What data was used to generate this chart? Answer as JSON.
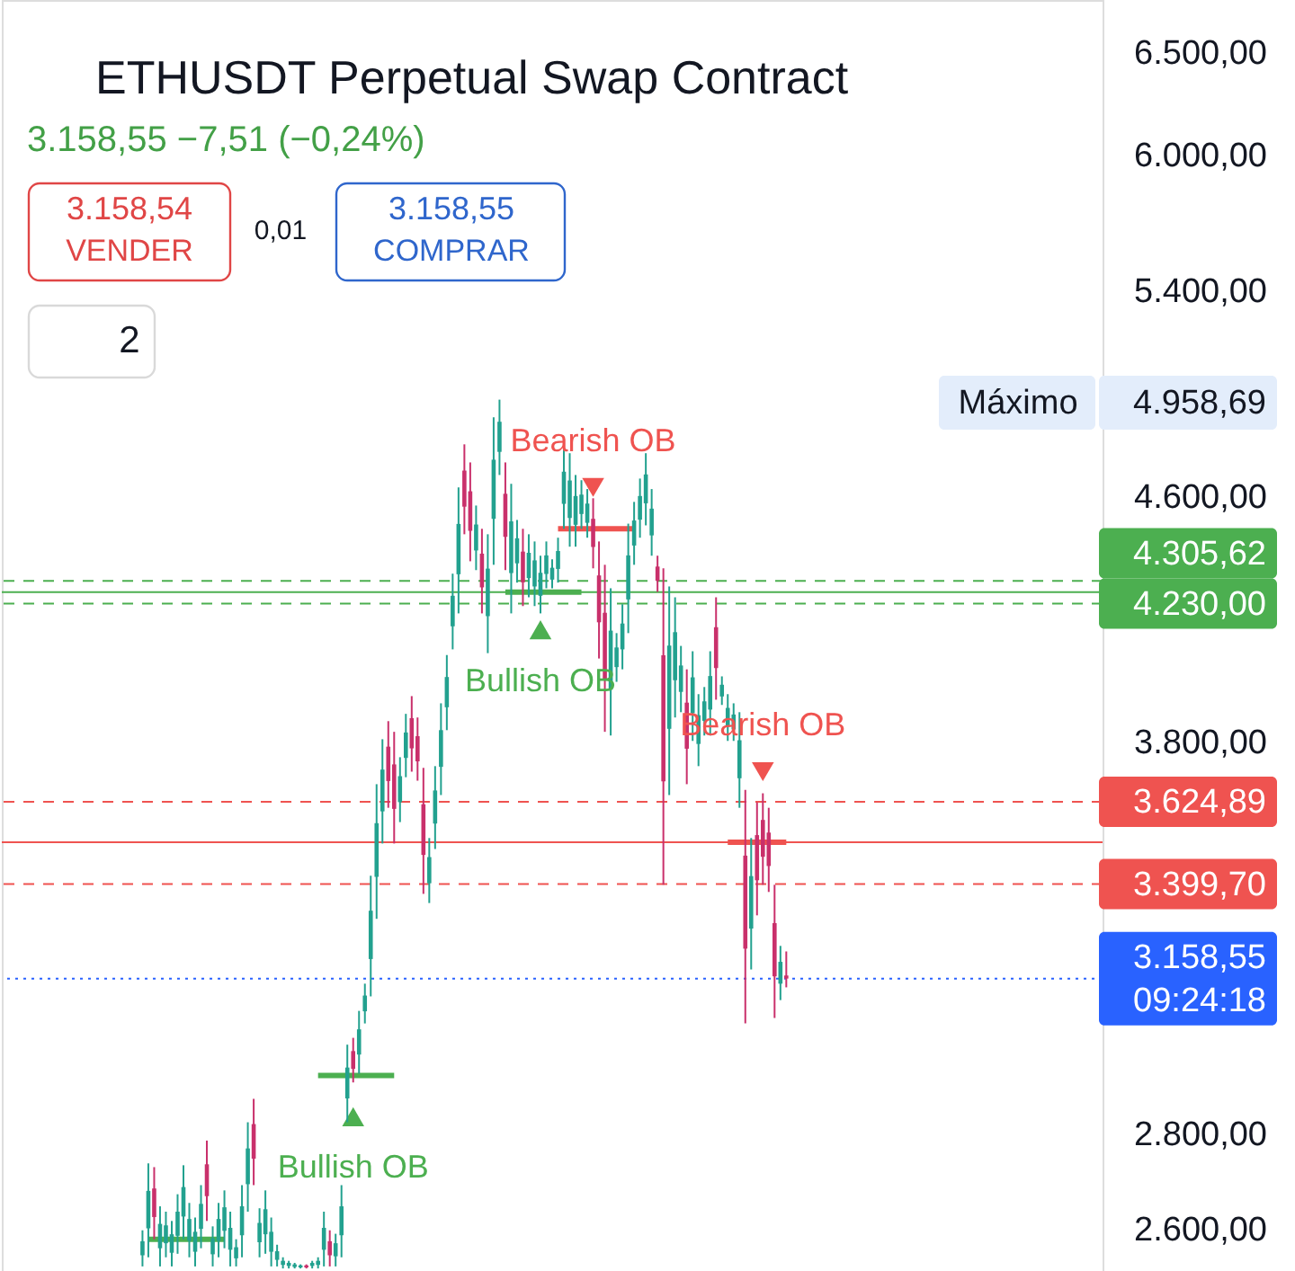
{
  "chart_data": {
    "type": "candlestick",
    "title": "ETHUSDT Perpetual Swap Contract",
    "subtitle": "3.158,55 −7,51 (−0,24%)",
    "categories": [
      null,
      null,
      null,
      null,
      null,
      null,
      null,
      null,
      null,
      null,
      null,
      null,
      null,
      null,
      null,
      null,
      null,
      null,
      null,
      null,
      null,
      null,
      null,
      null,
      null,
      null,
      null,
      null,
      null,
      null,
      null,
      null,
      null,
      null,
      null,
      null,
      null,
      null,
      null,
      null,
      null,
      null,
      null,
      null,
      null,
      null,
      null,
      null,
      null,
      null,
      null,
      null,
      null,
      null,
      null,
      null,
      null,
      null,
      null,
      null,
      null,
      null,
      null,
      null,
      null,
      null,
      null,
      null,
      null,
      null,
      null,
      null,
      null,
      null,
      null,
      null,
      null,
      null,
      null,
      null,
      null,
      null,
      null,
      null,
      null,
      null,
      null,
      null,
      null,
      null,
      null,
      null,
      null,
      null,
      null,
      null,
      null,
      null,
      null,
      null,
      null,
      null,
      null,
      null,
      null,
      null,
      null,
      null,
      null,
      null,
      null,
      null,
      null,
      null,
      null,
      null,
      null,
      null,
      null,
      null,
      null,
      null,
      null,
      null,
      null,
      null,
      null,
      null,
      null,
      null,
      null,
      null,
      null,
      null,
      null,
      null,
      null,
      null,
      null,
      null,
      null,
      null,
      null,
      null,
      null,
      null,
      null,
      null,
      null,
      null,
      null,
      null,
      null,
      null,
      null,
      null,
      null,
      null,
      null,
      null,
      null,
      null,
      null,
      null,
      null,
      null,
      null,
      null,
      null,
      null,
      null,
      null,
      null,
      null,
      null,
      null,
      null,
      null,
      null,
      null,
      null,
      null,
      null,
      null,
      null
    ],
    "ohlc": [
      null,
      null,
      null,
      null,
      null,
      null,
      null,
      null,
      null,
      null,
      null,
      null,
      null,
      null,
      null,
      null,
      null,
      null,
      null,
      null,
      null,
      null,
      [
        2546,
        2596,
        2524,
        2574
      ],
      [
        2600,
        2735,
        2542,
        2677
      ],
      [
        2682,
        2727,
        2578,
        2623
      ],
      [
        2560,
        2645,
        2524,
        2609
      ],
      [
        2570,
        2634,
        2542,
        2606
      ],
      [
        2551,
        2615,
        2524,
        2588
      ],
      [
        2585,
        2670,
        2549,
        2634
      ],
      [
        2624,
        2731,
        2578,
        2685
      ],
      [
        2575,
        2652,
        2542,
        2619
      ],
      [
        2553,
        2622,
        2524,
        2593
      ],
      [
        2599,
        2689,
        2560,
        2650
      ],
      [
        2733,
        2784,
        2615,
        2666
      ],
      [
        2548,
        2604,
        2524,
        2580
      ],
      [
        2575,
        2652,
        2542,
        2619
      ],
      [
        2595,
        2678,
        2560,
        2643
      ],
      [
        2557,
        2634,
        2524,
        2601
      ],
      [
        2540,
        2578,
        2524,
        2562
      ],
      [
        2586,
        2689,
        2542,
        2645
      ],
      [
        2691,
        2824,
        2634,
        2767
      ],
      [
        2820,
        2876,
        2689,
        2745
      ],
      [
        2572,
        2641,
        2542,
        2611
      ],
      [
        2588,
        2678,
        2549,
        2639
      ],
      [
        2553,
        2622,
        2524,
        2593
      ],
      [
        2537,
        2567,
        2524,
        2554
      ],
      [
        2527,
        2542,
        2520,
        2535
      ],
      [
        2525,
        2535,
        2520,
        2531
      ],
      [
        2523,
        2531,
        2520,
        2528
      ],
      [
        2522,
        2528,
        2520,
        2526
      ],
      [
        2526,
        2528,
        2520,
        2522
      ],
      [
        2525,
        2535,
        2520,
        2531
      ],
      [
        2527,
        2542,
        2520,
        2535
      ],
      [
        2557,
        2634,
        2524,
        2601
      ],
      [
        2574,
        2596,
        2524,
        2546
      ],
      [
        2544,
        2589,
        2524,
        2570
      ],
      [
        2586,
        2689,
        2542,
        2645
      ],
      [
        2877,
        3000,
        2824,
        2947
      ],
      [
        2985,
        3016,
        2913,
        2944
      ],
      [
        2977,
        3080,
        2933,
        3036
      ],
      [
        3079,
        3146,
        3050,
        3117
      ],
      [
        3207,
        3422,
        3115,
        3330
      ],
      [
        3419,
        3675,
        3309,
        3565
      ],
      [
        3598,
        3806,
        3509,
        3717
      ],
      [
        3784,
        3860,
        3608,
        3684
      ],
      [
        3732,
        3828,
        3509,
        3605
      ],
      [
        3624,
        3753,
        3568,
        3698
      ],
      [
        3751,
        3882,
        3695,
        3826
      ],
      [
        3869,
        3936,
        3711,
        3779
      ],
      [
        3815,
        3871,
        3685,
        3741
      ],
      [
        3618,
        3722,
        3374,
        3478
      ],
      [
        3402,
        3524,
        3350,
        3472
      ],
      [
        3564,
        3727,
        3494,
        3657
      ],
      [
        3725,
        3914,
        3644,
        3833
      ],
      [
        3902,
        4064,
        3833,
        3995
      ],
      [
        4156,
        4330,
        4082,
        4256
      ],
      [
        4328,
        4631,
        4198,
        4501
      ],
      [
        4692,
        4789,
        4465,
        4562
      ],
      [
        4617,
        4722,
        4372,
        4477
      ],
      [
        4409,
        4566,
        4342,
        4499
      ],
      [
        4398,
        4484,
        4198,
        4284
      ],
      [
        4189,
        4465,
        4070,
        4347
      ],
      [
        4519,
        4891,
        4360,
        4732
      ],
      [
        4761,
        4958.69,
        4676,
        4874
      ],
      [
        4608,
        4722,
        4342,
        4456
      ],
      [
        4332,
        4644,
        4198,
        4510
      ],
      [
        4365,
        4515,
        4300,
        4451
      ],
      [
        4405,
        4484,
        4222,
        4301
      ],
      [
        4315,
        4465,
        4251,
        4401
      ],
      [
        4287,
        4440,
        4222,
        4375
      ],
      [
        4256,
        4391,
        4198,
        4333
      ],
      [
        4329,
        4440,
        4281,
        4392
      ],
      [
        4310,
        4379,
        4281,
        4350
      ],
      [
        4346,
        4453,
        4300,
        4407
      ],
      [
        4572,
        4776,
        4484,
        4688
      ],
      [
        4522,
        4756,
        4422,
        4656
      ],
      [
        4498,
        4676,
        4422,
        4600
      ],
      [
        4536,
        4657,
        4484,
        4605
      ],
      [
        4505,
        4625,
        4453,
        4573
      ],
      [
        4519,
        4592,
        4348,
        4421
      ],
      [
        4324,
        4440,
        4053,
        4169
      ],
      [
        4200,
        4360,
        3828,
        3988
      ],
      [
        3956,
        4281,
        3817,
        4142
      ],
      [
        4026,
        4134,
        3980,
        4088
      ],
      [
        4082,
        4228,
        4019,
        4165
      ],
      [
        4244,
        4502,
        4134,
        4392
      ],
      [
        4426,
        4579,
        4360,
        4513
      ],
      [
        4516,
        4663,
        4453,
        4600
      ],
      [
        4574,
        4756,
        4496,
        4678
      ],
      [
        4461,
        4625,
        4391,
        4555
      ],
      [
        4354,
        4391,
        4269,
        4306
      ],
      [
        4063,
        4348,
        3398,
        3683
      ],
      [
        3837,
        4287,
        3644,
        4094
      ],
      [
        3985,
        4251,
        3871,
        4137
      ],
      [
        3949,
        4093,
        3887,
        4031
      ],
      [
        3916,
        4019,
        3675,
        3778
      ],
      [
        3884,
        4076,
        3801,
        3994
      ],
      [
        3792,
        3942,
        3727,
        3878
      ],
      [
        3861,
        3964,
        3817,
        3920
      ],
      [
        3895,
        4076,
        3817,
        3998
      ],
      [
        4153,
        4251,
        3925,
        4023
      ],
      [
        3935,
        3997,
        3909,
        3971
      ],
      [
        3843,
        3942,
        3801,
        3900
      ],
      [
        3835,
        3914,
        3801,
        3880
      ],
      [
        3692,
        3887,
        3608,
        3803
      ],
      [
        3476,
        3659,
        3050,
        3233
      ],
      [
        3284,
        3524,
        3181,
        3421
      ],
      [
        3532,
        3623,
        3318,
        3410
      ],
      [
        3574,
        3649,
        3398,
        3473
      ],
      [
        3539,
        3608,
        3379,
        3448
      ],
      [
        3298,
        3398,
        3063,
        3164
      ],
      [
        3146,
        3240,
        3106,
        3200
      ],
      [
        3166.06,
        3226,
        3137,
        3158.55
      ],
      null,
      null,
      null,
      null,
      null,
      null,
      null,
      null,
      null,
      null,
      null,
      null,
      null,
      null,
      null,
      null,
      null,
      null,
      null,
      null,
      null,
      null,
      null,
      null,
      null,
      null,
      null,
      null,
      null,
      null,
      null,
      null,
      null,
      null,
      null,
      null,
      null,
      null,
      null,
      null,
      null,
      null,
      null,
      null,
      null,
      null,
      null,
      null,
      null,
      null,
      null,
      null
    ],
    "colors": [
      null,
      null,
      null,
      null,
      null,
      null,
      null,
      null,
      null,
      null,
      null,
      null,
      null,
      null,
      null,
      null,
      null,
      null,
      null,
      null,
      null,
      null,
      "#22a18f",
      "#22a18f",
      "#c9306b",
      "#22a18f",
      "#22a18f",
      "#22a18f",
      "#22a18f",
      "#22a18f",
      "#22a18f",
      "#22a18f",
      "#22a18f",
      "#c9306b",
      "#22a18f",
      "#22a18f",
      "#22a18f",
      "#22a18f",
      "#22a18f",
      "#22a18f",
      "#22a18f",
      "#c9306b",
      "#22a18f",
      "#22a18f",
      "#22a18f",
      "#22a18f",
      "#22a18f",
      "#22a18f",
      "#22a18f",
      "#22a18f",
      "#c9306b",
      "#22a18f",
      "#22a18f",
      "#22a18f",
      "#c9306b",
      "#22a18f",
      "#22a18f",
      "#22a18f",
      "#c9306b",
      "#22a18f",
      "#22a18f",
      "#22a18f",
      "#22a18f",
      "#22a18f",
      "#c9306b",
      "#c9306b",
      "#22a18f",
      "#22a18f",
      "#c9306b",
      "#c9306b",
      "#c9306b",
      "#22a18f",
      "#22a18f",
      "#22a18f",
      "#22a18f",
      "#22a18f",
      "#22a18f",
      "#c9306b",
      "#c9306b",
      "#22a18f",
      "#c9306b",
      "#22a18f",
      "#22a18f",
      "#22a18f",
      "#c9306b",
      "#22a18f",
      "#22a18f",
      "#c9306b",
      "#22a18f",
      "#22a18f",
      "#22a18f",
      "#22a18f",
      "#22a18f",
      "#22a18f",
      "#22a18f",
      "#22a18f",
      "#22a18f",
      "#22a18f",
      "#22a18f",
      "#c9306b",
      "#c9306b",
      "#c9306b",
      "#22a18f",
      "#22a18f",
      "#22a18f",
      "#22a18f",
      "#22a18f",
      "#22a18f",
      "#22a18f",
      "#22a18f",
      "#c9306b",
      "#c9306b",
      "#22a18f",
      "#22a18f",
      "#22a18f",
      "#c9306b",
      "#22a18f",
      "#22a18f",
      "#22a18f",
      "#22a18f",
      "#c9306b",
      "#22a18f",
      "#22a18f",
      "#22a18f",
      "#22a18f",
      "#c9306b",
      "#22a18f",
      "#c9306b",
      "#c9306b",
      "#c9306b",
      "#c9306b",
      "#22a18f",
      "#c9306b",
      null,
      null,
      null,
      null,
      null,
      null,
      null,
      null,
      null,
      null,
      null,
      null,
      null,
      null,
      null,
      null,
      null,
      null,
      null,
      null,
      null,
      null,
      null,
      null,
      null,
      null,
      null,
      null,
      null,
      null,
      null,
      null,
      null,
      null,
      null,
      null,
      null,
      null,
      null,
      null,
      null,
      null,
      null,
      null,
      null,
      null,
      null,
      null,
      null,
      null,
      null,
      null
    ],
    "series": [
      {
        "type": "line",
        "color": "#4caf50",
        "values": [
          null,
          null,
          null,
          null,
          null,
          null,
          null,
          null,
          null,
          null,
          null,
          null,
          null,
          null,
          null,
          null,
          null,
          null,
          null,
          null,
          null,
          null,
          null,
          2578,
          2578,
          2578,
          2578,
          2578,
          2578,
          2578,
          2578,
          2578,
          2578,
          2578,
          2578,
          2578,
          2578,
          null,
          null,
          null,
          null,
          null,
          null,
          null,
          null,
          null,
          null,
          null,
          null,
          null,
          null,
          null,
          2929,
          2929,
          2929,
          2929,
          2929,
          2929,
          2929,
          2929,
          2929,
          2929,
          2929,
          2929,
          2929,
          2929,
          null,
          null,
          null,
          null,
          null,
          null,
          null,
          null,
          null,
          null,
          null,
          null,
          null,
          null,
          null,
          null,
          null,
          null,
          4267.81,
          4267.81,
          4267.81,
          4267.81,
          4267.81,
          4267.81,
          4267.81,
          4267.81,
          4267.81,
          4267.81,
          4267.81,
          4267.81,
          4267.81,
          4267.81,
          null,
          null,
          null,
          null,
          null,
          null,
          null,
          null,
          null,
          null,
          null,
          null,
          null,
          null,
          null,
          null,
          null,
          null,
          null,
          null,
          null,
          null,
          null,
          null,
          null,
          null,
          null,
          null,
          null,
          null,
          null,
          null,
          null,
          null,
          null,
          null,
          null,
          null,
          null,
          null,
          null,
          null,
          null,
          null,
          null,
          null,
          null,
          null,
          null,
          null,
          null,
          null,
          null,
          null,
          null,
          null,
          null,
          null,
          null,
          null,
          null,
          null,
          null,
          null,
          null,
          null,
          null,
          null,
          null,
          null,
          null,
          null,
          null,
          null,
          null,
          null,
          null,
          null,
          null,
          null,
          null,
          null,
          null,
          null,
          null,
          null,
          null
        ]
      },
      {
        "type": "line",
        "color": "#ef5350",
        "values": [
          null,
          null,
          null,
          null,
          null,
          null,
          null,
          null,
          null,
          null,
          null,
          null,
          null,
          null,
          null,
          null,
          null,
          null,
          null,
          null,
          null,
          null,
          null,
          null,
          null,
          null,
          null,
          null,
          null,
          null,
          null,
          null,
          null,
          null,
          null,
          null,
          null,
          null,
          null,
          null,
          null,
          null,
          null,
          null,
          null,
          null,
          null,
          null,
          null,
          null,
          null,
          null,
          null,
          null,
          null,
          null,
          null,
          null,
          null,
          null,
          null,
          null,
          null,
          null,
          null,
          null,
          null,
          null,
          null,
          null,
          null,
          null,
          null,
          null,
          null,
          null,
          null,
          null,
          null,
          null,
          null,
          null,
          null,
          null,
          null,
          null,
          null,
          null,
          null,
          null,
          null,
          null,
          null,
          4484,
          4484,
          4484,
          4484,
          4484,
          4484,
          4484,
          4484,
          4484,
          4484,
          4484,
          4484,
          4484,
          4484,
          null,
          null,
          null,
          null,
          null,
          null,
          null,
          null,
          null,
          null,
          null,
          null,
          null,
          null,
          null,
          3512.3,
          3512.3,
          3512.3,
          3512.3,
          3512.3,
          3512.3,
          3512.3,
          3512.3,
          3512.3,
          3512.3,
          3512.3,
          null,
          null,
          null,
          null,
          null,
          null,
          null,
          null,
          null,
          null,
          null,
          null,
          null,
          null,
          null,
          null,
          null,
          null,
          null,
          null,
          null,
          null,
          null,
          null,
          null,
          null,
          null,
          null,
          null,
          null,
          null,
          null,
          null,
          null,
          null,
          null,
          null,
          null,
          null,
          null,
          null,
          null,
          null,
          null,
          null,
          null,
          null,
          null,
          null,
          null,
          null,
          null
        ]
      },
      {
        "type": "scatter",
        "name": "Bullish OB",
        "color": "#4caf50",
        "marker": "triangle",
        "values": [
          null,
          null,
          null,
          null,
          null,
          null,
          null,
          null,
          null,
          null,
          null,
          null,
          null,
          null,
          null,
          null,
          null,
          null,
          null,
          null,
          null,
          null,
          null,
          null,
          null,
          null,
          null,
          null,
          null,
          null,
          null,
          null,
          null,
          null,
          null,
          null,
          null,
          null,
          null,
          null,
          null,
          null,
          null,
          null,
          null,
          null,
          null,
          null,
          null,
          null,
          null,
          null,
          null,
          null,
          null,
          null,
          null,
          null,
          2836,
          null,
          null,
          null,
          null,
          null,
          null,
          null,
          null,
          null,
          null,
          null,
          null,
          null,
          null,
          null,
          null,
          null,
          null,
          null,
          null,
          null,
          null,
          null,
          null,
          null,
          null,
          null,
          null,
          null,
          null,
          null,
          4145,
          null,
          null,
          null,
          null,
          null,
          null,
          null,
          null,
          null,
          null,
          null,
          null,
          null,
          null,
          null,
          null,
          null,
          null,
          null,
          null,
          null,
          null,
          null,
          null,
          null,
          null,
          null,
          null,
          null,
          null,
          null,
          null,
          null,
          null,
          null,
          null,
          null,
          null,
          null,
          null,
          null,
          null,
          null,
          null,
          null,
          null,
          null,
          null,
          null,
          null,
          null,
          null,
          null,
          null,
          null,
          null,
          null,
          null,
          null,
          null,
          null,
          null,
          null,
          null,
          null,
          null,
          null,
          null,
          null,
          null,
          null,
          null,
          null,
          null,
          null,
          null,
          null,
          null,
          null,
          null,
          null,
          null,
          null,
          null,
          null,
          null,
          null,
          null,
          null,
          null,
          null,
          null,
          null,
          null
        ]
      },
      {
        "type": "scatter",
        "name": "Bearish OB",
        "color": "#ef5350",
        "marker": "triangle",
        "values": [
          null,
          null,
          null,
          null,
          null,
          null,
          null,
          null,
          null,
          null,
          null,
          null,
          null,
          null,
          null,
          null,
          null,
          null,
          null,
          null,
          null,
          null,
          null,
          null,
          null,
          null,
          null,
          null,
          null,
          null,
          null,
          null,
          null,
          null,
          null,
          null,
          null,
          null,
          null,
          null,
          null,
          null,
          null,
          null,
          null,
          null,
          null,
          null,
          null,
          null,
          null,
          null,
          null,
          null,
          null,
          null,
          null,
          null,
          null,
          null,
          null,
          null,
          null,
          null,
          null,
          null,
          null,
          null,
          null,
          null,
          null,
          null,
          null,
          null,
          null,
          null,
          null,
          null,
          null,
          null,
          null,
          null,
          null,
          null,
          null,
          null,
          null,
          null,
          null,
          null,
          null,
          null,
          null,
          null,
          null,
          null,
          null,
          null,
          null,
          4631,
          null,
          null,
          null,
          null,
          null,
          null,
          null,
          null,
          null,
          null,
          null,
          null,
          null,
          null,
          null,
          null,
          null,
          null,
          null,
          null,
          null,
          null,
          null,
          null,
          null,
          null,
          null,
          null,
          3711,
          null,
          null,
          null,
          null,
          null,
          null,
          null,
          null,
          null,
          null,
          null,
          null,
          null,
          null,
          null,
          null,
          null,
          null,
          null,
          null,
          null,
          null,
          null,
          null,
          null,
          null,
          null,
          null,
          null,
          null,
          null,
          null,
          null,
          null,
          null,
          null,
          null,
          null,
          null,
          null,
          null,
          null,
          null,
          null,
          null,
          null,
          null,
          null,
          null,
          null,
          null,
          null,
          null,
          null,
          null,
          null
        ]
      }
    ],
    "ref_lines": [
      {
        "axis": "y",
        "value": 4305.62,
        "label": "4.305,62",
        "color": "#4caf50",
        "line_style": "dashed"
      },
      {
        "axis": "y",
        "value": 4267.81,
        "color": "#4caf50",
        "line_style": "solid"
      },
      {
        "axis": "y",
        "value": 4230.0,
        "label": "4.230,00",
        "color": "#4caf50",
        "line_style": "dashed"
      },
      {
        "axis": "y",
        "value": 3624.89,
        "label": "3.624,89",
        "color": "#ef5350",
        "line_style": "dashed"
      },
      {
        "axis": "y",
        "value": 3512.3,
        "color": "#ef5350",
        "line_style": "solid"
      },
      {
        "axis": "y",
        "value": 3399.7,
        "label": "3.399,70",
        "color": "#ef5350",
        "line_style": "dashed"
      },
      {
        "axis": "y",
        "value": 3158.55,
        "label": "3.158,55\n09:24:18",
        "color": "#2962ff",
        "line_style": "dotted"
      }
    ],
    "annotations": [
      "3.158,54",
      "VENDER",
      "0,01",
      "3.158,55",
      "COMPRAR",
      "2",
      "Máximo",
      "4.958,69"
    ],
    "log": true,
    "ylim": [
      2515,
      6770
    ],
    "yticks": [
      {
        "value": 2600,
        "label": "2.600,00"
      },
      {
        "value": 2800,
        "label": "2.800,00"
      },
      {
        "value": 3800,
        "label": "3.800,00"
      },
      {
        "value": 4600,
        "label": "4.600,00"
      },
      {
        "value": 5400,
        "label": "5.400,00"
      },
      {
        "value": 6000,
        "label": "6.000,00"
      },
      {
        "value": 6500,
        "label": "6.500,00"
      }
    ],
    "tick_labels": "y"
  }
}
